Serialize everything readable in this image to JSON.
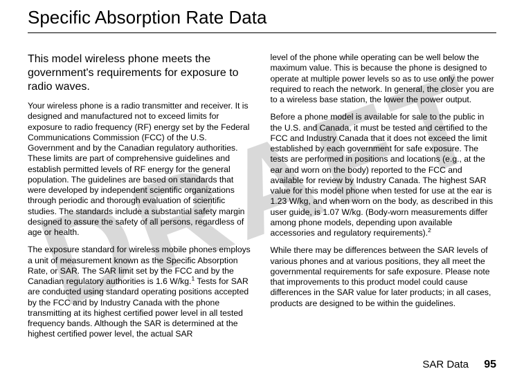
{
  "watermark": {
    "text": "DRAFT",
    "color": "#d9d9d9"
  },
  "title": "Specific Absorption Rate Data",
  "col1": {
    "lead": "This model wireless phone meets the government's requirements for exposure to radio waves.",
    "p1": "Your wireless phone is a radio transmitter and receiver. It is designed and manufactured not to exceed limits for exposure to radio frequency (RF) energy set by the Federal Communications Commission (FCC) of the U.S. Government and by the Canadian regulatory authorities. These limits are part of comprehensive guidelines and establish permitted levels of RF energy for the general population. The guidelines are based on standards that were developed by independent scientific organizations through periodic and thorough evaluation of scientific studies. The standards include a substantial safety margin designed to assure the safety of all persons, regardless of age or health.",
    "p2a": "The exposure standard for wireless mobile phones employs a unit of measurement known as the Specific Absorption Rate, or SAR. The SAR limit set by the FCC and by the Canadian regulatory authorities is 1.6 W/kg.",
    "p2sup": "1",
    "p2b": " Tests for SAR are conducted using standard operating positions accepted by the FCC and by Industry Canada with the phone transmitting at its highest certified power level in all tested frequency bands. Although the SAR is determined at the highest certified power level, the actual SAR"
  },
  "col2": {
    "p1": "level of the phone while operating can be well below the maximum value. This is because the phone is designed to operate at multiple power levels so as to use only the power required to reach the network. In general, the closer you are to a wireless base station, the lower the power output.",
    "p2a": "Before a phone model is available for sale to the public in the U.S. and Canada, it must be tested and certified to the FCC and Industry Canada that it does not exceed the limit established by each government for safe exposure. The tests are performed in positions and locations (e.g., at the ear and worn on the body) reported to the FCC and available for review by Industry Canada. The highest SAR value for this model phone when tested for use at the ear is 1.23 W/kg, and when worn on the body, as described in this user guide, is 1.07 W/kg. (Body-worn measurements differ among phone models, depending upon available accessories and regulatory requirements).",
    "p2sup": "2",
    "p3": "While there may be differences between the SAR levels of various phones and at various positions, they all meet the governmental requirements for safe exposure. Please note that improvements to this product model could cause differences in the SAR value for later products; in all cases, products are designed to be within the guidelines."
  },
  "footer": {
    "section": "SAR Data",
    "page": "95"
  }
}
